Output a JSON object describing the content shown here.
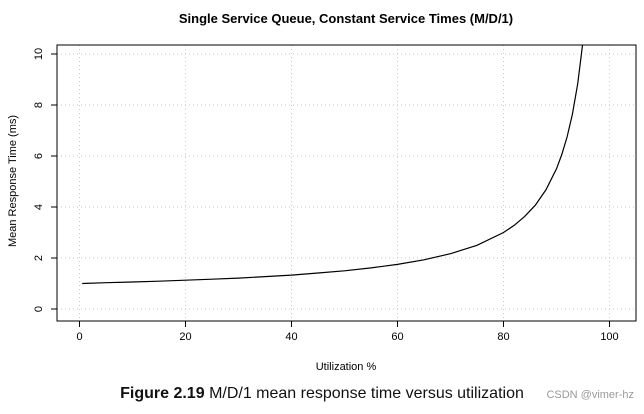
{
  "chart_data": {
    "type": "line",
    "title": "Single Service Queue, Constant Service Times (M/D/1)",
    "xlabel": "Utilization %",
    "ylabel": "Mean Response Time (ms)",
    "xlim": [
      0,
      100
    ],
    "ylim": [
      0,
      10
    ],
    "xticks": [
      0,
      20,
      40,
      60,
      80,
      100
    ],
    "yticks": [
      0,
      2,
      4,
      6,
      8,
      10
    ],
    "grid": true,
    "line_color": "#000000",
    "grid_color": "#c8c8c8",
    "series": [
      {
        "x": [
          0.5,
          5,
          10,
          15,
          20,
          25,
          30,
          35,
          40,
          45,
          50,
          55,
          60,
          65,
          70,
          75,
          80,
          82,
          84,
          86,
          88,
          90,
          91,
          92,
          93,
          94,
          95
        ],
        "y": [
          1.0,
          1.03,
          1.06,
          1.09,
          1.13,
          1.17,
          1.21,
          1.27,
          1.33,
          1.41,
          1.5,
          1.61,
          1.75,
          1.93,
          2.17,
          2.5,
          3.0,
          3.28,
          3.63,
          4.07,
          4.67,
          5.5,
          6.06,
          6.75,
          7.64,
          8.83,
          10.5
        ]
      }
    ]
  },
  "caption": {
    "figure_number": "Figure 2.19",
    "text": "M/D/1 mean response time versus utilization"
  },
  "watermark": "CSDN @vimer-hz"
}
